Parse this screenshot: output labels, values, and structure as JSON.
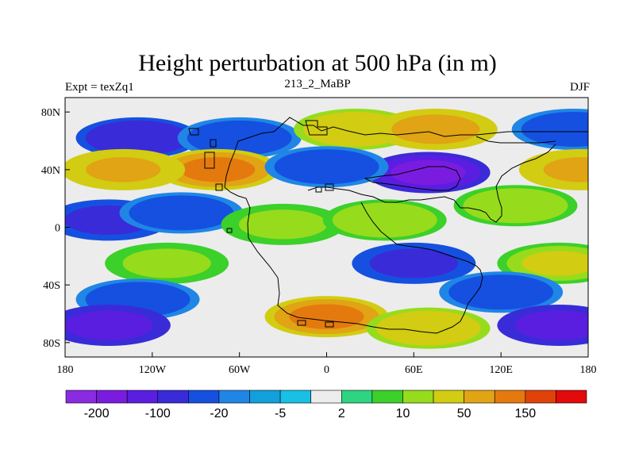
{
  "title": "Height perturbation at 500 hPa (in m)",
  "subtitle_left": "Expt = texZq1",
  "subtitle_center": "213_2_MaBP",
  "subtitle_right": "DJF",
  "chart_data": {
    "type": "heatmap",
    "title": "Height perturbation at 500 hPa (in m)",
    "x_axis": {
      "range": [
        -180,
        180
      ],
      "ticks": [
        -180,
        -120,
        -60,
        0,
        60,
        120,
        180
      ],
      "tick_labels": [
        "180",
        "120W",
        "60W",
        "0",
        "60E",
        "120E",
        "180"
      ]
    },
    "y_axis": {
      "range": [
        -90,
        90
      ],
      "ticks": [
        -80,
        -40,
        0,
        40,
        80
      ],
      "tick_labels": [
        "80S",
        "40S",
        "0",
        "40N",
        "80N"
      ]
    },
    "colorbar": {
      "colors": [
        "#8a2be2",
        "#7a1ce0",
        "#5a1ee0",
        "#3a2bd8",
        "#1550e0",
        "#1f86e6",
        "#12a0dc",
        "#18c0e4",
        "#ececec",
        "#2ed482",
        "#3cd02a",
        "#96dc1c",
        "#d2cc12",
        "#e0a414",
        "#e47a0e",
        "#e0420a",
        "#e20a0a"
      ],
      "labels": [
        "-200",
        "-100",
        "-20",
        "-5",
        "2",
        "10",
        "50",
        "150"
      ],
      "label_boundary_index": [
        1,
        3,
        5,
        7,
        9,
        11,
        13,
        15
      ]
    },
    "field_features": [
      {
        "lon": -130,
        "lat": 62,
        "value": -90
      },
      {
        "lon": -60,
        "lat": 62,
        "value": -40
      },
      {
        "lon": 20,
        "lat": 68,
        "value": 45
      },
      {
        "lon": 75,
        "lat": 68,
        "value": 80
      },
      {
        "lon": 170,
        "lat": 68,
        "value": -40
      },
      {
        "lon": -75,
        "lat": 40,
        "value": 120
      },
      {
        "lon": -140,
        "lat": 40,
        "value": 60
      },
      {
        "lon": 175,
        "lat": 40,
        "value": 60
      },
      {
        "lon": 70,
        "lat": 38,
        "value": -180
      },
      {
        "lon": 0,
        "lat": 42,
        "value": -40
      },
      {
        "lon": -150,
        "lat": 5,
        "value": -70
      },
      {
        "lon": -100,
        "lat": 10,
        "value": -40
      },
      {
        "lon": -30,
        "lat": 2,
        "value": 15
      },
      {
        "lon": 40,
        "lat": 5,
        "value": 20
      },
      {
        "lon": 130,
        "lat": 15,
        "value": 20
      },
      {
        "lon": 60,
        "lat": -25,
        "value": -70
      },
      {
        "lon": -110,
        "lat": -25,
        "value": 15
      },
      {
        "lon": 160,
        "lat": -25,
        "value": 25
      },
      {
        "lon": -130,
        "lat": -50,
        "value": -40
      },
      {
        "lon": 120,
        "lat": -45,
        "value": -40
      },
      {
        "lon": 0,
        "lat": -62,
        "value": 130
      },
      {
        "lon": -150,
        "lat": -68,
        "value": -150
      },
      {
        "lon": 160,
        "lat": -68,
        "value": -150
      },
      {
        "lon": 70,
        "lat": -70,
        "value": 40
      }
    ]
  }
}
